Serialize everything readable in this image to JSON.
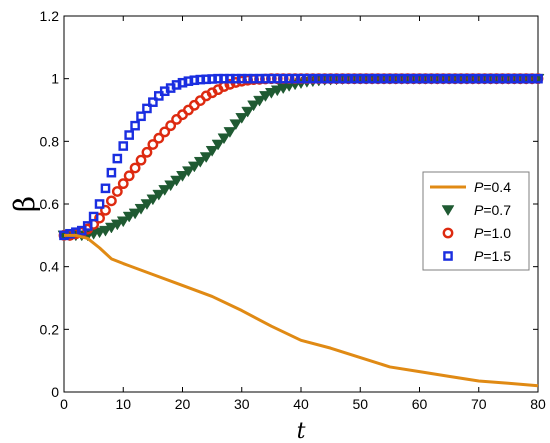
{
  "chart_data": {
    "type": "line",
    "xlabel": "t",
    "ylabel": "β",
    "xlim": [
      0,
      80
    ],
    "ylim": [
      0,
      1.2
    ],
    "xticks": [
      0,
      10,
      20,
      30,
      40,
      50,
      60,
      70,
      80
    ],
    "yticks": [
      0,
      0.2,
      0.4,
      0.6,
      0.8,
      1,
      1.2
    ],
    "xtick_labels": [
      "0",
      "10",
      "20",
      "30",
      "40",
      "50",
      "60",
      "70",
      "80"
    ],
    "ytick_labels": [
      "0",
      "0.2",
      "0.4",
      "0.6",
      "0.8",
      "1",
      "1.2"
    ],
    "grid": false,
    "legend_position": "right",
    "series": [
      {
        "name": "P=0.4",
        "legend_var": "P",
        "legend_value": "=0.4",
        "style": "line",
        "color": "#e08a14",
        "x": [
          0,
          2,
          4,
          6,
          8,
          10,
          15,
          20,
          25,
          30,
          35,
          40,
          45,
          50,
          55,
          60,
          65,
          70,
          75,
          80
        ],
        "y": [
          0.5,
          0.5,
          0.49,
          0.46,
          0.425,
          0.41,
          0.375,
          0.34,
          0.305,
          0.26,
          0.21,
          0.165,
          0.14,
          0.11,
          0.08,
          0.065,
          0.05,
          0.035,
          0.028,
          0.02
        ]
      },
      {
        "name": "P=0.7",
        "legend_var": "P",
        "legend_value": "=0.7",
        "style": "marker",
        "marker": "triangle-down",
        "color": "#1f5a32",
        "x": [
          0,
          1,
          2,
          3,
          4,
          5,
          6,
          7,
          8,
          9,
          10,
          11,
          12,
          13,
          14,
          15,
          16,
          17,
          18,
          19,
          20,
          21,
          22,
          23,
          24,
          25,
          26,
          27,
          28,
          29,
          30,
          31,
          32,
          33,
          34,
          35,
          36,
          37,
          38,
          39,
          40,
          41,
          42,
          43,
          44,
          45,
          46,
          47,
          48,
          49,
          50,
          51,
          52,
          53,
          54,
          55,
          56,
          57,
          58,
          59,
          60,
          61,
          62,
          63,
          64,
          65,
          66,
          67,
          68,
          69,
          70,
          71,
          72,
          73,
          74,
          75,
          76,
          77,
          78,
          79,
          80
        ],
        "y": [
          0.5,
          0.5,
          0.5,
          0.5,
          0.5,
          0.505,
          0.51,
          0.515,
          0.525,
          0.535,
          0.545,
          0.56,
          0.57,
          0.585,
          0.6,
          0.615,
          0.63,
          0.645,
          0.66,
          0.675,
          0.69,
          0.705,
          0.72,
          0.735,
          0.75,
          0.77,
          0.79,
          0.81,
          0.83,
          0.855,
          0.875,
          0.895,
          0.915,
          0.93,
          0.945,
          0.955,
          0.963,
          0.97,
          0.977,
          0.982,
          0.986,
          0.99,
          0.992,
          0.994,
          0.996,
          0.997,
          0.998,
          0.999,
          1,
          1,
          1,
          1,
          1,
          1,
          1,
          1,
          1,
          1,
          1,
          1,
          1,
          1,
          1,
          1,
          1,
          1,
          1,
          1,
          1,
          1,
          1,
          1,
          1,
          1,
          1,
          1,
          1,
          1,
          1,
          1,
          1
        ]
      },
      {
        "name": "P=1.0",
        "legend_var": "P",
        "legend_value": "=1.0",
        "style": "marker",
        "marker": "circle",
        "color": "#dd2a10",
        "x": [
          0,
          1,
          2,
          3,
          4,
          5,
          6,
          7,
          8,
          9,
          10,
          11,
          12,
          13,
          14,
          15,
          16,
          17,
          18,
          19,
          20,
          21,
          22,
          23,
          24,
          25,
          26,
          27,
          28,
          29,
          30,
          31,
          32,
          33,
          34,
          35,
          36,
          37,
          38,
          39,
          40,
          41,
          42,
          43,
          44,
          45,
          46,
          47,
          48,
          49,
          50,
          51,
          52,
          53,
          54,
          55,
          56,
          57,
          58,
          59,
          60,
          61,
          62,
          63,
          64,
          65,
          66,
          67,
          68,
          69,
          70,
          71,
          72,
          73,
          74,
          75,
          76,
          77,
          78,
          79,
          80
        ],
        "y": [
          0.5,
          0.5,
          0.505,
          0.51,
          0.52,
          0.535,
          0.555,
          0.58,
          0.61,
          0.64,
          0.665,
          0.69,
          0.715,
          0.74,
          0.765,
          0.79,
          0.81,
          0.83,
          0.85,
          0.87,
          0.885,
          0.9,
          0.915,
          0.93,
          0.945,
          0.955,
          0.965,
          0.975,
          0.982,
          0.988,
          0.992,
          0.995,
          0.997,
          0.998,
          0.999,
          1,
          1,
          1,
          1,
          1,
          1,
          1,
          1,
          1,
          1,
          1,
          1,
          1,
          1,
          1,
          1,
          1,
          1,
          1,
          1,
          1,
          1,
          1,
          1,
          1,
          1,
          1,
          1,
          1,
          1,
          1,
          1,
          1,
          1,
          1,
          1,
          1,
          1,
          1,
          1,
          1,
          1,
          1,
          1,
          1,
          1
        ]
      },
      {
        "name": "P=1.5",
        "legend_var": "P",
        "legend_value": "=1.5",
        "style": "marker",
        "marker": "square",
        "color": "#1a2ee0",
        "x": [
          0,
          1,
          2,
          3,
          4,
          5,
          6,
          7,
          8,
          9,
          10,
          11,
          12,
          13,
          14,
          15,
          16,
          17,
          18,
          19,
          20,
          21,
          22,
          23,
          24,
          25,
          26,
          27,
          28,
          29,
          30,
          31,
          32,
          33,
          34,
          35,
          36,
          37,
          38,
          39,
          40,
          41,
          42,
          43,
          44,
          45,
          46,
          47,
          48,
          49,
          50,
          51,
          52,
          53,
          54,
          55,
          56,
          57,
          58,
          59,
          60,
          61,
          62,
          63,
          64,
          65,
          66,
          67,
          68,
          69,
          70,
          71,
          72,
          73,
          74,
          75,
          76,
          77,
          78,
          79,
          80
        ],
        "y": [
          0.5,
          0.505,
          0.51,
          0.515,
          0.53,
          0.56,
          0.6,
          0.65,
          0.7,
          0.745,
          0.785,
          0.82,
          0.85,
          0.88,
          0.905,
          0.925,
          0.945,
          0.96,
          0.97,
          0.98,
          0.987,
          0.992,
          0.995,
          0.997,
          0.998,
          0.999,
          1,
          1,
          1,
          1,
          1,
          1,
          1,
          1,
          1,
          1,
          1,
          1,
          1,
          1,
          1,
          1,
          1,
          1,
          1,
          1,
          1,
          1,
          1,
          1,
          1,
          1,
          1,
          1,
          1,
          1,
          1,
          1,
          1,
          1,
          1,
          1,
          1,
          1,
          1,
          1,
          1,
          1,
          1,
          1,
          1,
          1,
          1,
          1,
          1,
          1,
          1,
          1,
          1,
          1,
          1
        ]
      }
    ]
  }
}
